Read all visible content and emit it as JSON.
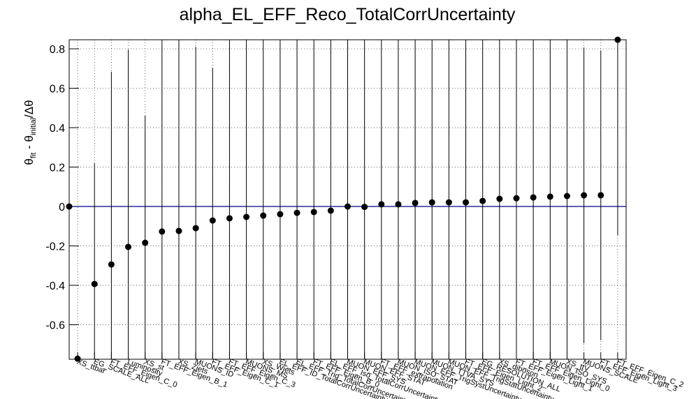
{
  "chart_data": {
    "type": "errorbar",
    "title": "alpha_EL_EFF_Reco_TotalCorrUncertainty",
    "ylabel_parts": [
      "θ",
      "fit",
      " - θ",
      "initial",
      "/Δθ"
    ],
    "x": [
      0,
      0.5,
      1.5,
      2.5,
      3.5,
      4.5,
      5.5,
      6.5,
      7.5,
      8.5,
      9.5,
      10.5,
      11.5,
      12.5,
      13.5,
      14.5,
      15.5,
      16.5,
      17.5,
      18.5,
      19.5,
      20.5,
      21.5,
      22.5,
      23.5,
      24.5,
      25.5,
      26.5,
      27.5,
      28.5,
      29.5,
      30.5,
      31.5,
      32.5
    ],
    "categories": [
      null,
      "XS_ttbar",
      "EG_SCALE_ALL",
      "FT_EFF_Eigen_C_0",
      "Luminosity",
      "XS_st",
      "FT_EFF_Eigen_B_1",
      "XS_Zjets",
      "MUONS_ID",
      "FT_EFF_Eigen_C_1",
      "FT_EFF_Eigen_C_3",
      "MUONS_MS",
      "XS_Wjets",
      "EL_EFF_ID_TotalCorrUncertainty",
      "EL_EFF_Trig_TotalCorrUncertainty",
      "FT_EFF_Eigen_B_0",
      "EL_EFF_Iso_TotalCorrUncertainty",
      "MUON_EFF_SYS",
      "MUON_EFF_STAT",
      "FT_EFF_extrapolation",
      "MUON_ISO_STAT",
      "MUON_EFF_TrigSystUncertainty",
      "MUON_TTVA_SYS",
      "MUON_EFF_TrigStatUncertainty",
      "FT_EFF_Eigen_Light_2",
      "EG_RESOLUTION_ALL",
      "XS_diboson",
      "FT_EFF_Eigen_Light_1",
      "FT_EFF_Eigen_Light_0",
      "MUON_ISO_SYS",
      "XS_ttV",
      "MUONS_SCALE",
      "FT_EFF_Eigen_Light_3",
      "FT_EFF_Eigen_C_2"
    ],
    "values": [
      0,
      -0.772,
      -0.393,
      -0.294,
      -0.205,
      -0.184,
      -0.127,
      -0.124,
      -0.11,
      -0.071,
      -0.06,
      -0.053,
      -0.046,
      -0.039,
      -0.032,
      -0.028,
      -0.021,
      0,
      -0.002,
      0.011,
      0.011,
      0.018,
      0.021,
      0.021,
      0.021,
      0.028,
      0.039,
      0.042,
      0.046,
      0.05,
      0.053,
      0.057,
      0.057,
      0.85
    ],
    "errors": [
      0,
      0,
      0.612,
      0.977,
      1,
      0.644,
      1,
      1,
      0.92,
      0.775,
      1,
      1,
      1,
      1,
      1,
      1,
      1,
      1,
      1,
      1,
      1,
      1,
      1,
      1,
      1,
      1,
      1,
      1,
      1,
      1,
      1,
      0.75,
      0.735,
      0.995
    ],
    "color": "#000000",
    "reference_line": 0,
    "reference_color": "#000080",
    "xlim": [
      0,
      33
    ],
    "ylim": [
      -0.775,
      0.846
    ],
    "yticks": [
      -0.6,
      -0.4,
      -0.2,
      0,
      0.2,
      0.4,
      0.6,
      0.8
    ],
    "grid": true
  }
}
